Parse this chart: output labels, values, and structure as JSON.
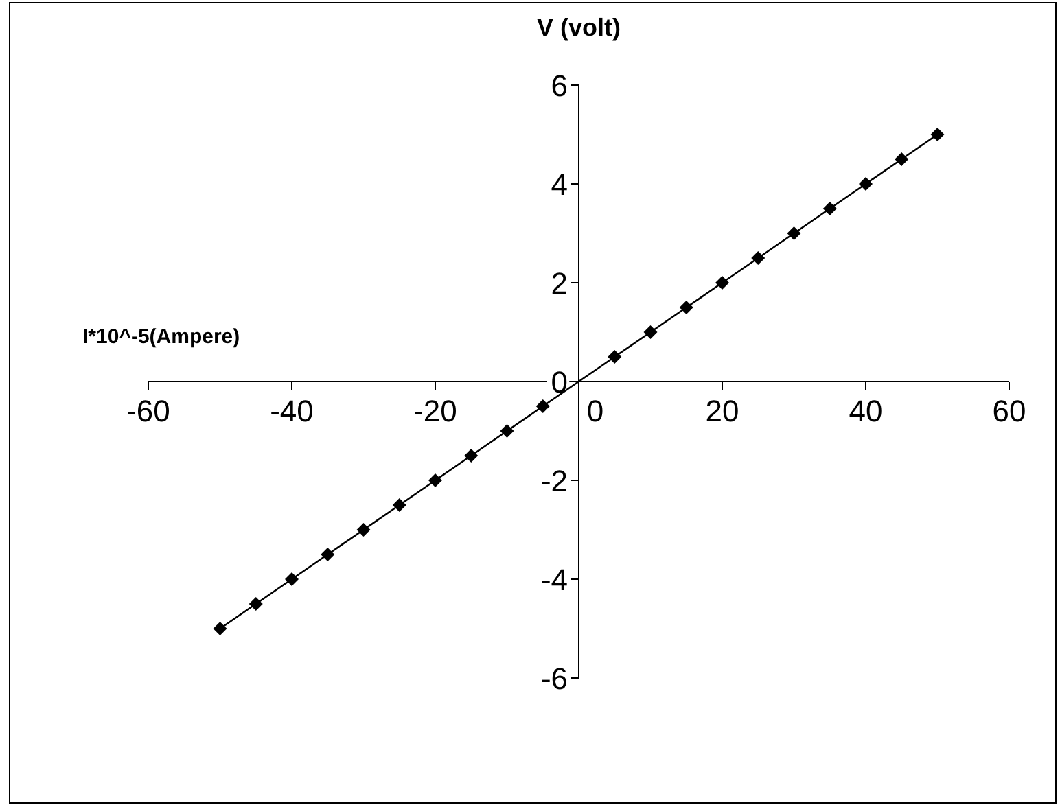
{
  "chart_data": {
    "type": "line",
    "xlabel": "I*10^-5(Ampere)",
    "ylabel": "V (volt)",
    "x": [
      -50,
      -45,
      -40,
      -35,
      -30,
      -25,
      -20,
      -15,
      -10,
      -5,
      5,
      10,
      15,
      20,
      25,
      30,
      35,
      40,
      45,
      50
    ],
    "series": [
      {
        "color": "#000000",
        "values": [
          -5,
          -4.5,
          -4,
          -3.5,
          -3,
          -2.5,
          -2,
          -1.5,
          -1,
          -0.5,
          0.5,
          1,
          1.5,
          2,
          2.5,
          3,
          3.5,
          4,
          4.5,
          5
        ]
      }
    ],
    "xlim": [
      -60,
      60
    ],
    "xticks": [
      -60,
      -40,
      -20,
      0,
      20,
      40,
      60
    ],
    "ylim": [
      -6,
      6
    ],
    "yticks": [
      -6,
      -4,
      -2,
      0,
      2,
      4,
      6
    ],
    "grid": false,
    "marker": "diamond",
    "line_style": "solid"
  }
}
